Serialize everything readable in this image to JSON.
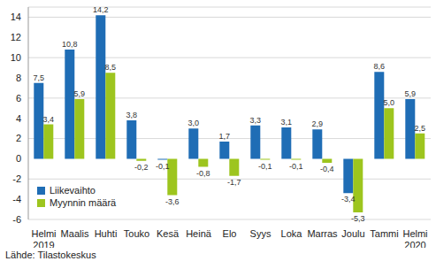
{
  "chart_data": {
    "type": "bar",
    "categories": [
      "Helmi\n2019",
      "Maalis",
      "Huhti",
      "Touko",
      "Kesä",
      "Heinä",
      "Elo",
      "Syys",
      "Loka",
      "Marras",
      "Joulu",
      "Tammi",
      "Helmi\n2020"
    ],
    "series": [
      {
        "name": "Liikevaihto",
        "color": "#1f6db5",
        "values": [
          7.5,
          10.8,
          14.2,
          3.8,
          -0.1,
          3.0,
          1.7,
          3.3,
          3.1,
          2.9,
          -3.4,
          8.6,
          5.9
        ],
        "value_labels": [
          "7,5",
          "10,8",
          "14,2",
          "3,8",
          "-0,1",
          "3,0",
          "1,7",
          "3,3",
          "3,1",
          "2,9",
          "-3,4",
          "8,6",
          "5,9"
        ]
      },
      {
        "name": "Myynnin määrä",
        "color": "#9dc51e",
        "values": [
          3.4,
          5.9,
          8.5,
          -0.2,
          -3.6,
          -0.8,
          -1.7,
          -0.1,
          -0.1,
          -0.4,
          -5.3,
          5.0,
          2.5
        ],
        "value_labels": [
          "3,4",
          "5,9",
          "8,5",
          "-0,2",
          "-3,6",
          "-0,8",
          "-1,7",
          "-0,1",
          "-0,1",
          "-0,4",
          "-5,3",
          "5,0",
          "2,5"
        ]
      }
    ],
    "ylim": [
      -6,
      15
    ],
    "yticks": [
      -6,
      -4,
      -2,
      0,
      2,
      4,
      6,
      8,
      10,
      12,
      14
    ],
    "grid": true,
    "legend": "lower left",
    "data_labels": true,
    "annotations": [
      "Lähde: Tilastokeskus"
    ]
  }
}
